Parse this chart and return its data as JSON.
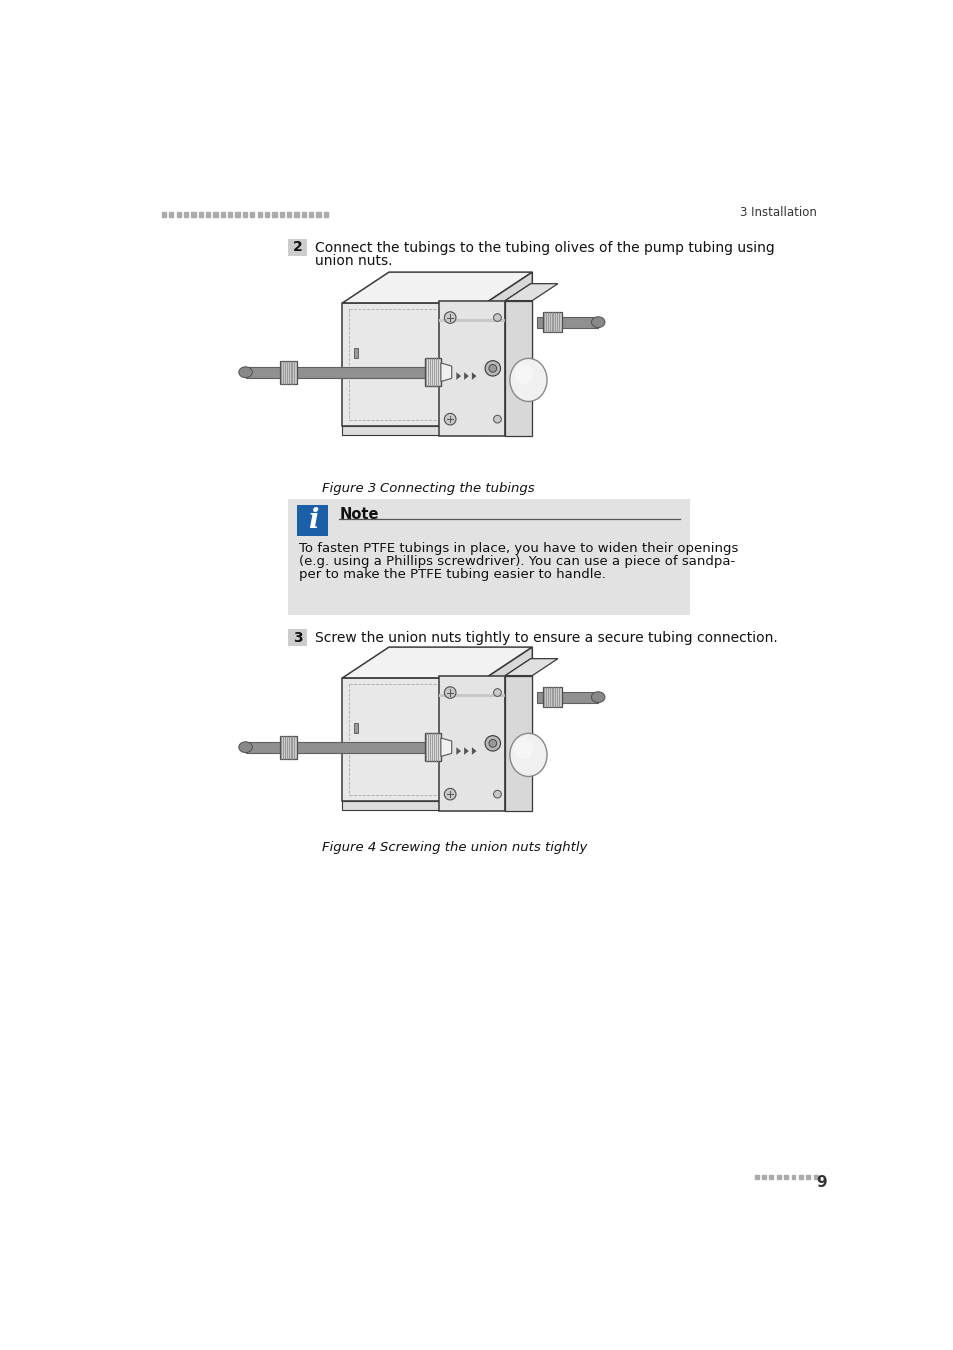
{
  "bg_color": "#ffffff",
  "header_dots_color": "#aaaaaa",
  "header_text": "3 Installation",
  "header_text_color": "#333333",
  "step2_number": "2",
  "step2_number_bg": "#cccccc",
  "step2_text_line1": "Connect the tubings to the tubing olives of the pump tubing using",
  "step2_text_line2": "union nuts.",
  "fig3_caption_label": "Figure 3",
  "fig3_caption_text": "Connecting the tubings",
  "note_bg": "#e2e2e2",
  "note_icon_bg": "#1a5fa8",
  "note_icon_text": "i",
  "note_title": "Note",
  "note_line_color": "#555555",
  "note_body_line1": "To fasten PTFE tubings in place, you have to widen their openings",
  "note_body_line2": "(e.g. using a Phillips screwdriver). You can use a piece of sandpa-",
  "note_body_line3": "per to make the PTFE tubing easier to handle.",
  "step3_number": "3",
  "step3_number_bg": "#cccccc",
  "step3_text": "Screw the union nuts tightly to ensure a secure tubing connection.",
  "fig4_caption_label": "Figure 4",
  "fig4_caption_text": "Screwing the union nuts tightly",
  "footer_dots_color": "#aaaaaa",
  "footer_page": "9",
  "device_face_color": "#e8e8e8",
  "device_top_color": "#f2f2f2",
  "device_right_color": "#d8d8d8",
  "device_edge_color": "#3a3a3a",
  "pump_head_color": "#e4e4e4",
  "pump_head2_color": "#d0d0d0",
  "tube_color": "#909090",
  "tube_edge": "#606060",
  "nut_color": "#b0b0b0",
  "nut_edge": "#505050",
  "screw_color": "#c8c8c8",
  "screw_edge": "#505050",
  "knob_color": "#d8d8d8",
  "inner_box_color": "#e0e0e0",
  "shadow_color": "#c0c0c0"
}
